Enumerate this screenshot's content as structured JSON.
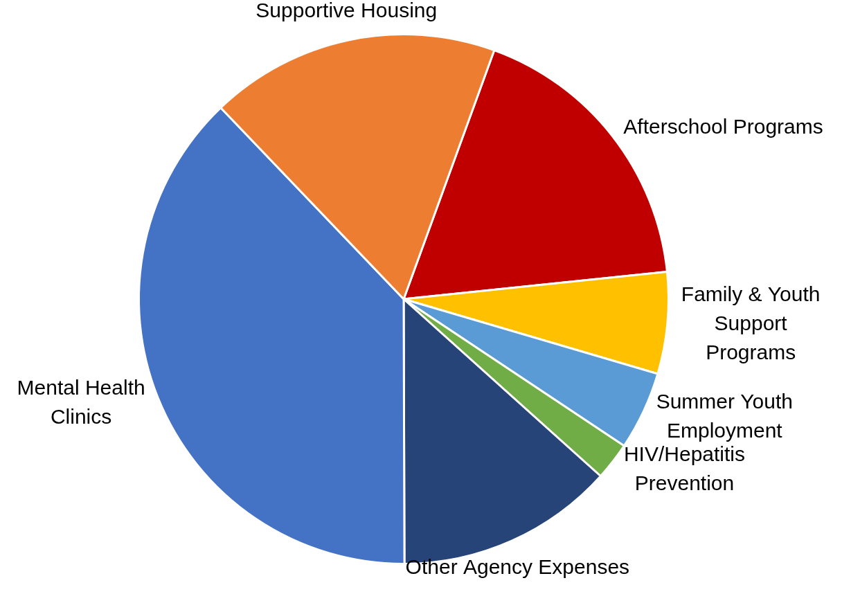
{
  "chart_data": {
    "type": "pie",
    "categories": [
      [
        "Afterschool Programs"
      ],
      [
        "Family & Youth",
        "Support",
        "Programs"
      ],
      [
        "Summer Youth",
        "Employment"
      ],
      [
        "HIV/Hepatitis",
        "Prevention"
      ],
      [
        "Other Agency Expenses"
      ],
      [
        "Mental Health",
        "Clinics"
      ],
      [
        "Supportive Housing"
      ]
    ],
    "values": [
      17.8,
      6.2,
      4.8,
      2.3,
      13.3,
      37.9,
      17.7
    ],
    "colors": [
      "#c00000",
      "#ffc000",
      "#5b9bd5",
      "#70ad47",
      "#264478",
      "#4472c4",
      "#ed7d31"
    ]
  }
}
